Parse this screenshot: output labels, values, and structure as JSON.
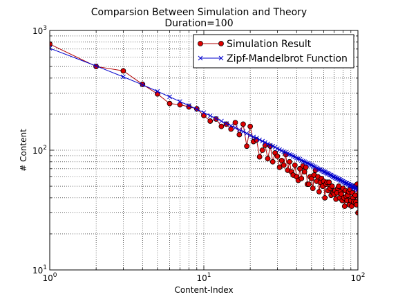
{
  "chart_data": {
    "type": "line",
    "title": "Comparsion Between Simulation and Theory",
    "subtitle": "Duration=100",
    "xlabel": "Content-Index",
    "ylabel": "# Content",
    "xscale": "log",
    "yscale": "log",
    "xlim": [
      1,
      100
    ],
    "ylim": [
      10,
      1000
    ],
    "x_ticks": [
      {
        "value": 1,
        "base": "10",
        "exp": "0"
      },
      {
        "value": 10,
        "base": "10",
        "exp": "1"
      },
      {
        "value": 100,
        "base": "10",
        "exp": "2"
      }
    ],
    "y_ticks": [
      {
        "value": 10,
        "base": "10",
        "exp": "1"
      },
      {
        "value": 100,
        "base": "10",
        "exp": "2"
      },
      {
        "value": 1000,
        "base": "10",
        "exp": "3"
      }
    ],
    "grid": true,
    "legend_position": "top-right",
    "series": [
      {
        "name": "Simulation Result",
        "color": "#b00000",
        "marker_fill": "#e00000",
        "marker": "circle",
        "x": [
          1,
          2,
          3,
          4,
          5,
          6,
          7,
          8,
          9,
          10,
          11,
          12,
          13,
          14,
          15,
          16,
          17,
          18,
          19,
          20,
          21,
          22,
          23,
          24,
          25,
          26,
          27,
          28,
          29,
          30,
          31,
          32,
          33,
          34,
          35,
          36,
          37,
          38,
          39,
          40,
          41,
          42,
          43,
          44,
          45,
          46,
          47,
          48,
          49,
          50,
          51,
          52,
          53,
          54,
          55,
          56,
          57,
          58,
          59,
          60,
          61,
          62,
          63,
          64,
          65,
          66,
          67,
          68,
          69,
          70,
          71,
          72,
          73,
          74,
          75,
          76,
          77,
          78,
          79,
          80,
          81,
          82,
          83,
          84,
          85,
          86,
          87,
          88,
          89,
          90,
          91,
          92,
          93,
          94,
          95,
          96,
          97,
          98,
          99,
          100
        ],
        "values": [
          770,
          500,
          460,
          355,
          295,
          245,
          240,
          230,
          222,
          195,
          175,
          182,
          158,
          165,
          150,
          170,
          135,
          165,
          108,
          158,
          118,
          122,
          88,
          100,
          110,
          85,
          108,
          80,
          95,
          89,
          72,
          82,
          75,
          92,
          68,
          80,
          66,
          62,
          75,
          60,
          56,
          70,
          58,
          74,
          66,
          72,
          52,
          52,
          60,
          58,
          48,
          62,
          68,
          55,
          60,
          45,
          54,
          58,
          50,
          55,
          40,
          52,
          54,
          46,
          54,
          48,
          42,
          50,
          44,
          43,
          46,
          39,
          44,
          48,
          50,
          40,
          45,
          43,
          38,
          48,
          40,
          34,
          46,
          41,
          38,
          42,
          45,
          35,
          47,
          38,
          34,
          44,
          40,
          37,
          50,
          42,
          37,
          35,
          52,
          30
        ]
      },
      {
        "name": "Zipf-Mandelbrot Function",
        "color": "#0000cc",
        "marker": "x",
        "x": [
          1,
          2,
          3,
          4,
          5,
          6,
          7,
          8,
          9,
          10,
          11,
          12,
          13,
          14,
          15,
          16,
          17,
          18,
          19,
          20,
          21,
          22,
          23,
          24,
          25,
          26,
          27,
          28,
          29,
          30,
          31,
          32,
          33,
          34,
          35,
          36,
          37,
          38,
          39,
          40,
          41,
          42,
          43,
          44,
          45,
          46,
          47,
          48,
          49,
          50,
          51,
          52,
          53,
          54,
          55,
          56,
          57,
          58,
          59,
          60,
          61,
          62,
          63,
          64,
          65,
          66,
          67,
          68,
          69,
          70,
          71,
          72,
          73,
          74,
          75,
          76,
          77,
          78,
          79,
          80,
          81,
          82,
          83,
          84,
          85,
          86,
          87,
          88,
          89,
          90,
          91,
          92,
          93,
          94,
          95,
          96,
          97,
          98,
          99,
          100
        ],
        "values": [
          710,
          505,
          410,
          352,
          310,
          279,
          255,
          236,
          220,
          206,
          194,
          184,
          175,
          167,
          160,
          154,
          148,
          143,
          138,
          133,
          129,
          126,
          122,
          119,
          116,
          113,
          110,
          108,
          106,
          103,
          101,
          99,
          97,
          96,
          94,
          92,
          91,
          89,
          88,
          86,
          85,
          84,
          82,
          81,
          80,
          79,
          78,
          77,
          76,
          75,
          74,
          73,
          72,
          71,
          70,
          69,
          69,
          68,
          67,
          66,
          66,
          65,
          64,
          64,
          63,
          62,
          62,
          61,
          60,
          60,
          59,
          59,
          58,
          58,
          57,
          57,
          56,
          56,
          55,
          55,
          54,
          54,
          53,
          53,
          53,
          52,
          52,
          51,
          51,
          51,
          50,
          50,
          49,
          49,
          49,
          48,
          48,
          48,
          47,
          47
        ]
      }
    ]
  }
}
